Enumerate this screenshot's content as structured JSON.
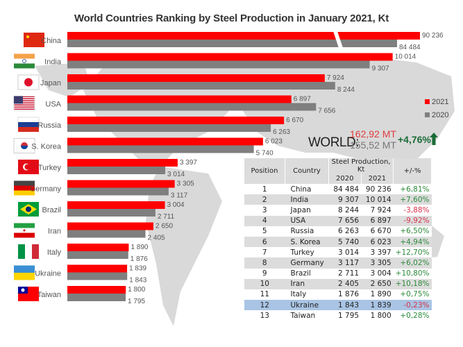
{
  "colors": {
    "y2021": "#ff0000",
    "y2020": "#7f7f7f",
    "positive": "#2e8b3c",
    "negative": "#d6334a",
    "world_up": "#1a6b35"
  },
  "chart_data": {
    "type": "bar",
    "orientation": "horizontal",
    "title": "World Countries Ranking by Steel Production in January 2021, Kt",
    "categories": [
      "China",
      "India",
      "Japan",
      "USA",
      "Russia",
      "S. Korea",
      "Turkey",
      "Germany",
      "Brazil",
      "Iran",
      "Italy",
      "Ukraine",
      "Taiwan"
    ],
    "flags": [
      "flag-china-icon",
      "flag-india-icon",
      "flag-japan-icon",
      "flag-usa-icon",
      "flag-russia-icon",
      "flag-south-korea-icon",
      "flag-turkey-icon",
      "flag-germany-icon",
      "flag-brazil-icon",
      "flag-iran-icon",
      "flag-italy-icon",
      "flag-ukraine-icon",
      "flag-taiwan-icon"
    ],
    "series": [
      {
        "name": "2021",
        "values": [
          90236,
          10014,
          7924,
          6897,
          6670,
          6023,
          3397,
          3305,
          3004,
          2650,
          1890,
          1839,
          1800
        ],
        "labels": [
          "90 236",
          "10 014",
          "7 924",
          "6 897",
          "6 670",
          "6 023",
          "3 397",
          "3 305",
          "3 004",
          "2 650",
          "1 890",
          "1 839",
          "1 800"
        ]
      },
      {
        "name": "2020",
        "values": [
          84484,
          9307,
          8244,
          7656,
          6263,
          5740,
          3014,
          3117,
          2711,
          2405,
          1876,
          1843,
          1795
        ],
        "labels": [
          "84 484",
          "9 307",
          "8 244",
          "7 656",
          "6 263",
          "5 740",
          "3 014",
          "3 117",
          "2 711",
          "2 405",
          "1 876",
          "1 843",
          "1 795"
        ]
      }
    ],
    "axis_break": "China bars truncated",
    "legend": [
      "2021",
      "2020"
    ],
    "legend_position": "right"
  },
  "world": {
    "label": "WORLD:",
    "value_2021": "162,92 MT",
    "value_2020": "155,52 MT",
    "change": "+4,76%"
  },
  "table": {
    "headers": {
      "position": "Position",
      "country": "Country",
      "group": "Steel Production,  Kt",
      "y2020": "2020",
      "y2021": "2021",
      "change": "+/-%"
    },
    "rows": [
      {
        "pos": "1",
        "country": "China",
        "v2020": "84 484",
        "v2021": "90 236",
        "chg": "+6,81%"
      },
      {
        "pos": "2",
        "country": "India",
        "v2020": "9 307",
        "v2021": "10 014",
        "chg": "+7,60%"
      },
      {
        "pos": "3",
        "country": "Japan",
        "v2020": "8 244",
        "v2021": "7 924",
        "chg": "-3,88%"
      },
      {
        "pos": "4",
        "country": "USA",
        "v2020": "7 656",
        "v2021": "6 897",
        "chg": "-9,92%"
      },
      {
        "pos": "5",
        "country": "Russia",
        "v2020": "6 263",
        "v2021": "6 670",
        "chg": "+6,50%"
      },
      {
        "pos": "6",
        "country": "S. Korea",
        "v2020": "5 740",
        "v2021": "6 023",
        "chg": "+4,94%"
      },
      {
        "pos": "7",
        "country": "Turkey",
        "v2020": "3 014",
        "v2021": "3 397",
        "chg": "+12,70%"
      },
      {
        "pos": "8",
        "country": "Germany",
        "v2020": "3 117",
        "v2021": "3 305",
        "chg": "+6,02%"
      },
      {
        "pos": "9",
        "country": "Brazil",
        "v2020": "2 711",
        "v2021": "3 004",
        "chg": "+10,80%"
      },
      {
        "pos": "10",
        "country": "Iran",
        "v2020": "2 405",
        "v2021": "2 650",
        "chg": "+10,18%"
      },
      {
        "pos": "11",
        "country": "Italy",
        "v2020": "1 876",
        "v2021": "1 890",
        "chg": "+0,75%"
      },
      {
        "pos": "12",
        "country": "Ukraine",
        "v2020": "1 843",
        "v2021": "1 839",
        "chg": "-0,23%"
      },
      {
        "pos": "13",
        "country": "Taiwan",
        "v2020": "1 795",
        "v2021": "1 800",
        "chg": "+0,28%"
      }
    ]
  }
}
